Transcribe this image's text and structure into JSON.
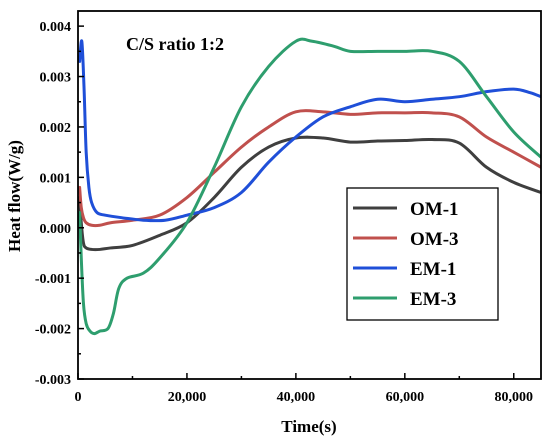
{
  "chart_data": {
    "type": "line",
    "title": "C/S ratio 1:2",
    "xlabel": "Time(s)",
    "ylabel": "Heat flow(W/g)",
    "xlim": [
      0,
      85000
    ],
    "ylim": [
      -0.003,
      0.0043
    ],
    "xticks": [
      0,
      20000,
      40000,
      60000,
      80000
    ],
    "xtick_labels": [
      "0",
      "20,000",
      "40,000",
      "60,000",
      "80,000"
    ],
    "yticks": [
      -0.003,
      -0.002,
      -0.001,
      0.0,
      0.001,
      0.002,
      0.003,
      0.004
    ],
    "ytick_labels": [
      "-0.003",
      "-0.002",
      "-0.001",
      "0.000",
      "0.001",
      "0.002",
      "0.003",
      "0.004"
    ],
    "grid": false,
    "legend_position": "lower-right",
    "series": [
      {
        "name": "OM-1",
        "color": "#3f3f3f",
        "x": [
          300,
          600,
          1000,
          1500,
          2500,
          4000,
          6000,
          10000,
          15000,
          20000,
          25000,
          30000,
          35000,
          40000,
          45000,
          50000,
          55000,
          60000,
          65000,
          70000,
          75000,
          80000,
          85000
        ],
        "y": [
          0.0006,
          0.0001,
          -0.0003,
          -0.0004,
          -0.00043,
          -0.00043,
          -0.0004,
          -0.00035,
          -0.00015,
          0.0001,
          0.0006,
          0.0012,
          0.0016,
          0.00178,
          0.00178,
          0.0017,
          0.00172,
          0.00173,
          0.00175,
          0.00168,
          0.0012,
          0.0009,
          0.0007
        ]
      },
      {
        "name": "OM-3",
        "color": "#c0504d",
        "x": [
          300,
          600,
          1000,
          1500,
          2500,
          4000,
          6000,
          10000,
          15000,
          20000,
          25000,
          30000,
          35000,
          40000,
          45000,
          50000,
          55000,
          60000,
          65000,
          70000,
          75000,
          80000,
          85000
        ],
        "y": [
          0.0008,
          0.0004,
          0.0002,
          0.0001,
          5e-05,
          5e-05,
          0.0001,
          0.00015,
          0.00025,
          0.0006,
          0.0011,
          0.0016,
          0.002,
          0.0023,
          0.0023,
          0.00225,
          0.00228,
          0.00228,
          0.00228,
          0.0022,
          0.0018,
          0.0015,
          0.0012
        ]
      },
      {
        "name": "EM-1",
        "color": "#1f4fd8",
        "x": [
          300,
          700,
          1100,
          1500,
          2000,
          2500,
          3500,
          5000,
          8000,
          12000,
          16000,
          20000,
          25000,
          30000,
          35000,
          40000,
          45000,
          50000,
          55000,
          60000,
          65000,
          70000,
          75000,
          80000,
          83000,
          85000
        ],
        "y": [
          0.0033,
          0.0037,
          0.0028,
          0.0015,
          0.0008,
          0.0005,
          0.0003,
          0.00025,
          0.0002,
          0.00015,
          0.00015,
          0.00025,
          0.0004,
          0.0007,
          0.0013,
          0.0018,
          0.0022,
          0.0024,
          0.00255,
          0.0025,
          0.00255,
          0.0026,
          0.0027,
          0.00275,
          0.00268,
          0.0026
        ]
      },
      {
        "name": "EM-3",
        "color": "#2e9e6e",
        "x": [
          300,
          600,
          1000,
          1500,
          2200,
          3000,
          4000,
          5500,
          6500,
          7500,
          9000,
          12000,
          15000,
          20000,
          25000,
          30000,
          35000,
          40000,
          43000,
          47000,
          50000,
          55000,
          60000,
          65000,
          70000,
          75000,
          80000,
          85000
        ],
        "y": [
          0.0003,
          -0.0006,
          -0.0015,
          -0.0019,
          -0.00205,
          -0.0021,
          -0.00205,
          -0.002,
          -0.0017,
          -0.0012,
          -0.001,
          -0.0009,
          -0.0006,
          0.0001,
          0.0012,
          0.0024,
          0.0032,
          0.0037,
          0.0037,
          0.0036,
          0.0035,
          0.0035,
          0.0035,
          0.0035,
          0.0033,
          0.0026,
          0.0019,
          0.0014
        ]
      }
    ]
  }
}
